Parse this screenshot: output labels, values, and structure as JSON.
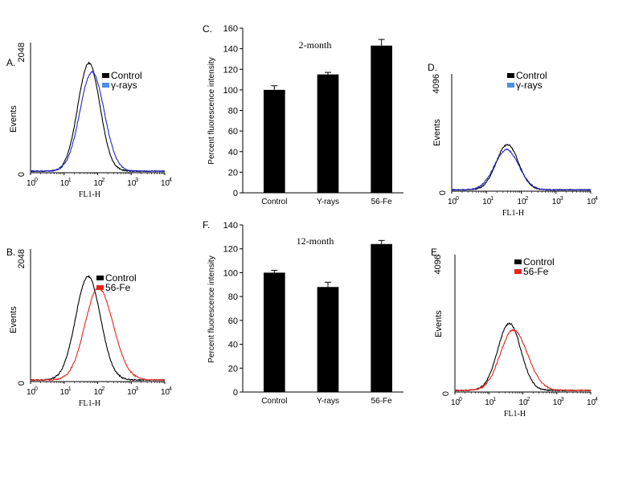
{
  "chart_data": [
    {
      "id": "A",
      "panel_label": "A.",
      "type": "line",
      "xlabel": "FL1-H",
      "ylabel": "Events",
      "xscale": "log",
      "xlim": [
        1,
        10000
      ],
      "ylim": [
        0,
        2048
      ],
      "y_ticks": [
        "0",
        "2048"
      ],
      "x_ticks": [
        "10",
        "10",
        "10",
        "10",
        "10"
      ],
      "x_tick_exps": [
        "0",
        "1",
        "2",
        "3",
        "4"
      ],
      "legend_position": "top-right",
      "series": [
        {
          "name": "Control",
          "color": "#000000",
          "peak_x": 55,
          "peak_y": 1700,
          "width_decades": 0.33,
          "skew": 1.0
        },
        {
          "name": "γ-rays",
          "color": "#2222cc",
          "peak_x": 68,
          "peak_y": 1560,
          "width_decades": 0.36,
          "skew": 1.0
        }
      ],
      "legend_colors": [
        "#000000",
        "#4a8ee6"
      ]
    },
    {
      "id": "B",
      "panel_label": "B.",
      "type": "line",
      "xlabel": "FL1-H",
      "ylabel": "Events",
      "xscale": "log",
      "xlim": [
        1,
        10000
      ],
      "ylim": [
        0,
        2048
      ],
      "y_ticks": [
        "0",
        "2048"
      ],
      "x_ticks": [
        "10",
        "10",
        "10",
        "10",
        "10"
      ],
      "x_tick_exps": [
        "0",
        "1",
        "2",
        "3",
        "4"
      ],
      "legend_position": "top-right",
      "series": [
        {
          "name": "Control",
          "color": "#000000",
          "peak_x": 52,
          "peak_y": 1600,
          "width_decades": 0.37,
          "skew": 1.0
        },
        {
          "name": "56-Fe",
          "color": "#e8241c",
          "peak_x": 105,
          "peak_y": 1420,
          "width_decades": 0.4,
          "skew": 1.1
        }
      ],
      "legend_colors": [
        "#000000",
        "#e8241c"
      ]
    },
    {
      "id": "C",
      "panel_label": "C.",
      "type": "bar",
      "title": "2-month",
      "ylabel": "Percent fluorescence intensity",
      "categories": [
        "Control",
        "Y-rays",
        "56-Fe"
      ],
      "values": [
        100,
        115,
        143
      ],
      "errors": [
        4,
        2,
        6
      ],
      "ylim": [
        0,
        160
      ],
      "y_ticks": [
        "0",
        "20",
        "40",
        "60",
        "80",
        "100",
        "120",
        "140",
        "160"
      ]
    },
    {
      "id": "D",
      "panel_label": "D.",
      "type": "line",
      "xlabel": "FL1-H",
      "ylabel": "Events",
      "xscale": "log",
      "xlim": [
        1,
        10000
      ],
      "ylim": [
        0,
        4096
      ],
      "y_ticks": [
        "0",
        "4096"
      ],
      "x_ticks": [
        "10",
        "10",
        "10",
        "10",
        "10"
      ],
      "x_tick_exps": [
        "0",
        "1",
        "2",
        "3",
        "4"
      ],
      "legend_position": "top-left",
      "series": [
        {
          "name": "Control",
          "color": "#000000",
          "peak_x": 40,
          "peak_y": 1580,
          "width_decades": 0.32,
          "skew": 1.0
        },
        {
          "name": "γ-rays",
          "color": "#2222cc",
          "peak_x": 38,
          "peak_y": 1400,
          "width_decades": 0.35,
          "skew": 1.0
        }
      ],
      "legend_colors": [
        "#000000",
        "#4a8ee6"
      ]
    },
    {
      "id": "F",
      "panel_label": "F.",
      "type": "bar",
      "title": "12-month",
      "ylabel": "Percent fluorescence intensity",
      "categories": [
        "Control",
        "Y-rays",
        "56-Fe"
      ],
      "values": [
        100,
        88,
        124
      ],
      "errors": [
        2,
        4,
        3
      ],
      "ylim": [
        0,
        140
      ],
      "y_ticks": [
        "0",
        "20",
        "40",
        "60",
        "80",
        "100",
        "120",
        "140"
      ]
    },
    {
      "id": "E",
      "panel_label": "E.",
      "type": "line",
      "xlabel": "FL1-H",
      "ylabel": "Events",
      "xscale": "log",
      "xlim": [
        1,
        10000
      ],
      "ylim": [
        0,
        4096
      ],
      "y_ticks": [
        "0",
        "4096"
      ],
      "x_ticks": [
        "10",
        "10",
        "10",
        "10",
        "10"
      ],
      "x_tick_exps": [
        "0",
        "1",
        "2",
        "3",
        "4"
      ],
      "legend_position": "top-left",
      "series": [
        {
          "name": "Control",
          "color": "#000000",
          "peak_x": 40,
          "peak_y": 2000,
          "width_decades": 0.34,
          "skew": 1.0
        },
        {
          "name": "56-Fe",
          "color": "#e8241c",
          "peak_x": 52,
          "peak_y": 1800,
          "width_decades": 0.38,
          "skew": 1.1
        }
      ],
      "legend_colors": [
        "#000000",
        "#e8241c"
      ]
    }
  ]
}
